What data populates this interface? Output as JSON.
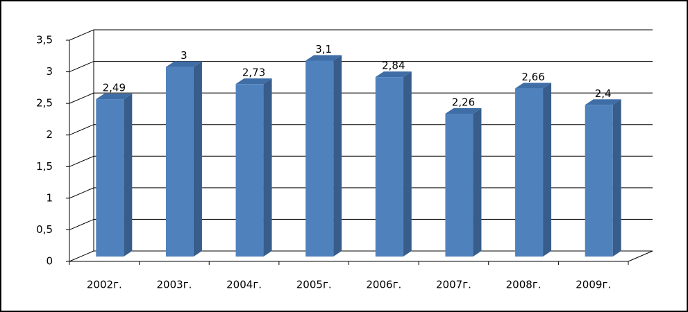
{
  "chart_data": {
    "type": "bar",
    "categories": [
      "2002г.",
      "2003г.",
      "2004г.",
      "2005г.",
      "2006г.",
      "2007г.",
      "2008г.",
      "2009г."
    ],
    "values": [
      2.49,
      3,
      2.73,
      3.1,
      2.84,
      2.26,
      2.66,
      2.4
    ],
    "value_labels": [
      "2,49",
      "3",
      "2,73",
      "3,1",
      "2,84",
      "2,26",
      "2,66",
      "2,4"
    ],
    "color": "#4f81bd",
    "ylim": [
      0,
      3.5
    ],
    "yticks": [
      0,
      {
        "value": 0.5,
        "label": "0,5"
      },
      1,
      {
        "value": 1.5,
        "label": "1,5"
      },
      2,
      {
        "value": 2.5,
        "label": "2,5"
      },
      3,
      {
        "value": 3.5,
        "label": "3,5"
      }
    ],
    "grid": true
  }
}
